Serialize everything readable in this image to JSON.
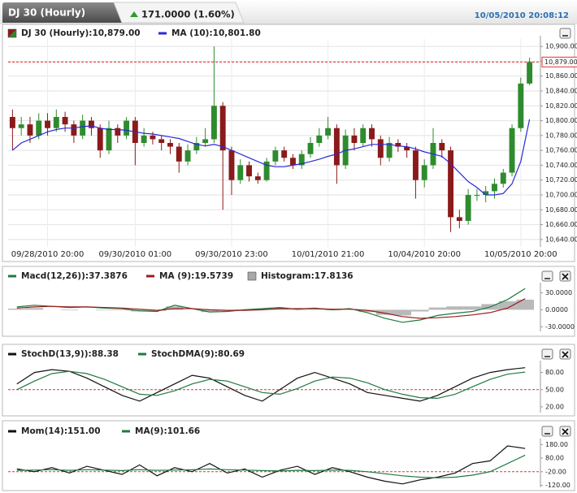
{
  "header": {
    "tab": "DJ 30 (Hourly)",
    "change": "171.0000 (1.60%)",
    "timestamp": "10/05/2010 20:08:12"
  },
  "chart_data": [
    {
      "type": "candlestick",
      "grid": true,
      "ylim": [
        10630,
        10910
      ],
      "yticks": [
        {
          "value": 10900,
          "label": "10,900.00"
        },
        {
          "value": 10880,
          "label": "10,880.00"
        },
        {
          "value": 10860,
          "label": "10,860.00"
        },
        {
          "value": 10840,
          "label": "10,840.00"
        },
        {
          "value": 10820,
          "label": "10,820.00"
        },
        {
          "value": 10800,
          "label": "10,800.00"
        },
        {
          "value": 10780,
          "label": "10,780.00"
        },
        {
          "value": 10760,
          "label": "10,760.00"
        },
        {
          "value": 10740,
          "label": "10,740.00"
        },
        {
          "value": 10720,
          "label": "10,720.00"
        },
        {
          "value": 10700,
          "label": "10,700.00"
        },
        {
          "value": 10680,
          "label": "10,680.00"
        },
        {
          "value": 10660,
          "label": "10,660.00"
        },
        {
          "value": 10640,
          "label": "10,640.00"
        }
      ],
      "categories": [
        null,
        null,
        null,
        null,
        "09/28/2010 20:00",
        null,
        null,
        null,
        null,
        null,
        null,
        null,
        null,
        null,
        "09/30/2010 01:00",
        null,
        null,
        null,
        null,
        null,
        null,
        null,
        null,
        null,
        null,
        "09/30/2010 23:00",
        null,
        null,
        null,
        null,
        null,
        null,
        null,
        null,
        null,
        null,
        "10/01/2010 21:00",
        null,
        null,
        null,
        null,
        null,
        null,
        null,
        null,
        null,
        null,
        "10/04/2010 20:00",
        null,
        null,
        null,
        null,
        null,
        null,
        null,
        null,
        null,
        null,
        "10/05/2010 20:00",
        null
      ],
      "last_price": {
        "value": 10879,
        "label": "10,879.00"
      },
      "series": [
        {
          "name": "DJ 30 (Hourly):10,879.00",
          "up_color": "#2e8b2e",
          "down_color": "#8b1a1a",
          "open": [
            10805,
            10790,
            10795,
            10780,
            10800,
            10790,
            10805,
            10795,
            10780,
            10800,
            10790,
            10760,
            10790,
            10780,
            10800,
            10770,
            10780,
            10775,
            10770,
            10765,
            10745,
            10760,
            10770,
            10775,
            10820,
            10760,
            10720,
            10740,
            10725,
            10720,
            10745,
            10760,
            10750,
            10740,
            10755,
            10770,
            10780,
            10790,
            10740,
            10780,
            10770,
            10790,
            10775,
            10750,
            10770,
            10765,
            10760,
            10720,
            10740,
            10770,
            10760,
            10670,
            10665,
            10700,
            10700,
            10705,
            10715,
            10730,
            10790,
            10850
          ],
          "high": [
            10815,
            10805,
            10805,
            10810,
            10810,
            10815,
            10812,
            10800,
            10808,
            10805,
            10795,
            10800,
            10795,
            10805,
            10805,
            10790,
            10785,
            10780,
            10775,
            10770,
            10768,
            10778,
            10790,
            10900,
            10825,
            10765,
            10748,
            10745,
            10730,
            10750,
            10765,
            10765,
            10755,
            10760,
            10778,
            10790,
            10805,
            10795,
            10788,
            10790,
            10795,
            10795,
            10780,
            10778,
            10775,
            10770,
            10765,
            10748,
            10790,
            10775,
            10765,
            10680,
            10708,
            10708,
            10712,
            10722,
            10735,
            10795,
            10858,
            10885
          ],
          "low": [
            10760,
            10780,
            10770,
            10775,
            10780,
            10785,
            10785,
            10770,
            10775,
            10780,
            10750,
            10755,
            10770,
            10775,
            10740,
            10765,
            10768,
            10760,
            10755,
            10730,
            10740,
            10755,
            10765,
            10770,
            10680,
            10700,
            10715,
            10718,
            10715,
            10718,
            10740,
            10745,
            10735,
            10735,
            10750,
            10765,
            10775,
            10715,
            10735,
            10760,
            10765,
            10765,
            10740,
            10745,
            10758,
            10750,
            10695,
            10710,
            10735,
            10750,
            10650,
            10655,
            10660,
            10692,
            10690,
            10695,
            10710,
            10725,
            10785,
            10848
          ],
          "close": [
            10790,
            10795,
            10780,
            10800,
            10790,
            10805,
            10795,
            10780,
            10800,
            10790,
            10760,
            10790,
            10780,
            10800,
            10770,
            10780,
            10775,
            10770,
            10765,
            10745,
            10760,
            10770,
            10775,
            10820,
            10760,
            10720,
            10740,
            10725,
            10720,
            10745,
            10760,
            10750,
            10740,
            10755,
            10770,
            10780,
            10790,
            10740,
            10780,
            10770,
            10790,
            10775,
            10750,
            10770,
            10765,
            10760,
            10720,
            10740,
            10770,
            10760,
            10670,
            10665,
            10700,
            10700,
            10705,
            10715,
            10730,
            10790,
            10850,
            10879
          ]
        },
        {
          "name": "MA (10):10,801.80",
          "color": "#2a2ad8",
          "values": [
            10760,
            10770,
            10775,
            10780,
            10785,
            10788,
            10790,
            10790,
            10792,
            10793,
            10790,
            10788,
            10788,
            10787,
            10785,
            10783,
            10782,
            10780,
            10778,
            10776,
            10772,
            10768,
            10766,
            10768,
            10765,
            10760,
            10755,
            10750,
            10745,
            10740,
            10738,
            10738,
            10740,
            10742,
            10745,
            10748,
            10752,
            10755,
            10760,
            10762,
            10765,
            10768,
            10768,
            10768,
            10766,
            10765,
            10762,
            10758,
            10755,
            10752,
            10742,
            10730,
            10718,
            10710,
            10700,
            10700,
            10702,
            10715,
            10745,
            10801.8
          ]
        }
      ]
    },
    {
      "type": "line",
      "grid": false,
      "ylim": [
        -38,
        42
      ],
      "yticks": [
        {
          "value": 30,
          "label": "30.0000"
        },
        {
          "value": 0,
          "label": "0.0000"
        },
        {
          "value": -30,
          "label": "-30.0000"
        }
      ],
      "series": [
        {
          "name": "Macd(12,26)):37.3876",
          "color": "#1f7a3f",
          "values": [
            5,
            8,
            6,
            4,
            5,
            3,
            2,
            -2,
            -3,
            8,
            2,
            -4,
            -3,
            0,
            2,
            4,
            1,
            3,
            0,
            2,
            -5,
            -15,
            -22,
            -18,
            -10,
            -6,
            -3,
            5,
            18,
            37.3876
          ]
        },
        {
          "name": "MA (9):19.5739",
          "color": "#9b1c1c",
          "values": [
            3,
            5,
            6,
            5,
            5,
            4,
            3,
            1,
            -1,
            2,
            2,
            0,
            -1,
            -1,
            0,
            2,
            2,
            2,
            1,
            1,
            -1,
            -6,
            -12,
            -15,
            -14,
            -12,
            -9,
            -5,
            3,
            19.5739
          ]
        },
        {
          "name": "Histogram:17.8136",
          "color": "#a8a8a8",
          "style": "bar",
          "values": [
            2,
            3,
            0,
            -1,
            0,
            -1,
            -1,
            -3,
            -2,
            6,
            0,
            -4,
            -2,
            1,
            2,
            2,
            -1,
            1,
            -1,
            1,
            -4,
            -9,
            -10,
            -3,
            4,
            6,
            6,
            10,
            15,
            17.8136
          ]
        }
      ]
    },
    {
      "type": "line",
      "grid": false,
      "ylim": [
        10,
        95
      ],
      "ref_line": 50,
      "yticks": [
        {
          "value": 80,
          "label": "80.00"
        },
        {
          "value": 50,
          "label": "50.00"
        },
        {
          "value": 20,
          "label": "20.00"
        }
      ],
      "series": [
        {
          "name": "StochD(13,9)):88.38",
          "color": "#111111",
          "values": [
            60,
            80,
            85,
            82,
            70,
            55,
            40,
            30,
            45,
            60,
            75,
            70,
            55,
            40,
            30,
            50,
            70,
            80,
            70,
            60,
            45,
            40,
            35,
            30,
            40,
            55,
            70,
            80,
            85,
            88.38
          ]
        },
        {
          "name": "StochDMA(9):80.69",
          "color": "#1f7a3f",
          "values": [
            50,
            65,
            78,
            82,
            78,
            68,
            55,
            42,
            40,
            48,
            60,
            68,
            65,
            55,
            45,
            42,
            52,
            65,
            72,
            70,
            62,
            50,
            42,
            36,
            35,
            42,
            55,
            68,
            77,
            80.69
          ]
        }
      ]
    },
    {
      "type": "line",
      "grid": false,
      "ylim": [
        -135,
        200
      ],
      "ref_line": -20,
      "yticks": [
        {
          "value": 180,
          "label": "180.00"
        },
        {
          "value": 80,
          "label": "80.00"
        },
        {
          "value": -20,
          "label": "-20.00"
        },
        {
          "value": -120,
          "label": "-120.00"
        }
      ],
      "series": [
        {
          "name": "Mom(14):151.00",
          "color": "#111111",
          "values": [
            0,
            -20,
            10,
            -30,
            20,
            -10,
            -40,
            30,
            -50,
            10,
            -20,
            40,
            -30,
            0,
            -60,
            -10,
            20,
            -40,
            10,
            -20,
            -60,
            -90,
            -110,
            -80,
            -60,
            -30,
            40,
            60,
            170,
            151
          ]
        },
        {
          "name": "MA(9):101.66",
          "color": "#1f7a3f",
          "values": [
            -10,
            -8,
            -5,
            -10,
            -5,
            -8,
            -12,
            -5,
            -10,
            -8,
            -6,
            0,
            -5,
            -8,
            -12,
            -15,
            -10,
            -12,
            -8,
            -10,
            -20,
            -35,
            -50,
            -60,
            -65,
            -60,
            -45,
            -20,
            40,
            101.66
          ]
        }
      ]
    }
  ]
}
